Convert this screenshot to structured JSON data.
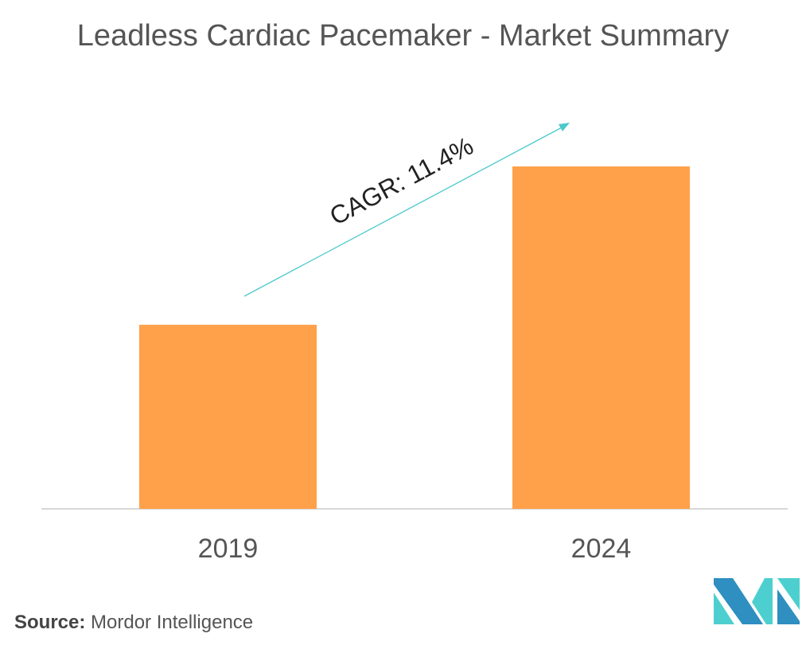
{
  "chart_data": {
    "type": "bar",
    "title": "Leadless Cardiac Pacemaker - Market Summary",
    "categories": [
      "2019",
      "2024"
    ],
    "values": [
      1,
      1.86
    ],
    "xlabel": "",
    "ylabel": "",
    "grid": false,
    "bar_color": "#FFA04A",
    "annotation": {
      "text": "CAGR: 11.4%",
      "arrow_color": "#4CC9CC"
    }
  },
  "source": {
    "label": "Source:",
    "value": "Mordor Intelligence"
  },
  "logo": {
    "colors": [
      "#2E8FC0",
      "#4ECFCF"
    ]
  }
}
